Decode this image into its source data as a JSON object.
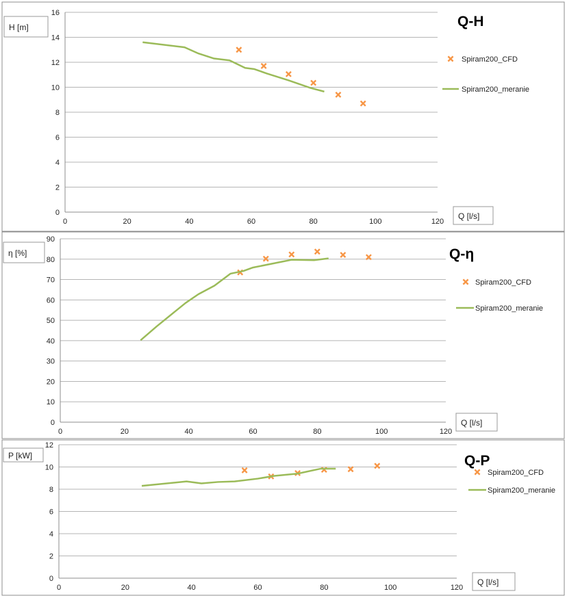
{
  "chart_data": [
    {
      "type": "scatter+line",
      "title": "Q-H",
      "xlabel": "Q [l/s]",
      "ylabel": "H [m]",
      "xlim": [
        0,
        120
      ],
      "ylim": [
        0,
        16
      ],
      "xticks": [
        0,
        20,
        40,
        60,
        80,
        100,
        120
      ],
      "yticks": [
        0,
        2,
        4,
        6,
        8,
        10,
        12,
        14,
        16
      ],
      "grid": "horizontal",
      "legend": "right",
      "series": [
        {
          "name": "Spiram200_CFD",
          "kind": "markers",
          "color": "#f79646",
          "x": [
            56,
            64,
            72,
            80,
            88,
            96
          ],
          "y": [
            13.0,
            11.7,
            11.05,
            10.35,
            9.4,
            8.7
          ]
        },
        {
          "name": "Spiram200_meranie",
          "kind": "line",
          "color": "#9bbb59",
          "x": [
            25,
            38.5,
            43,
            48,
            53,
            58,
            61,
            65,
            72,
            79,
            83.5
          ],
          "y": [
            13.6,
            13.2,
            12.7,
            12.3,
            12.15,
            11.55,
            11.45,
            11.1,
            10.55,
            9.95,
            9.65
          ]
        }
      ]
    },
    {
      "type": "scatter+line",
      "title": "Q-η",
      "xlabel": "Q [l/s]",
      "ylabel": "η [%]",
      "xlim": [
        0,
        120
      ],
      "ylim": [
        0,
        90
      ],
      "xticks": [
        0,
        20,
        40,
        60,
        80,
        100,
        120
      ],
      "yticks": [
        0,
        10,
        20,
        30,
        40,
        50,
        60,
        70,
        80,
        90
      ],
      "grid": "horizontal",
      "legend": "right",
      "series": [
        {
          "name": "Spiram200_CFD",
          "kind": "markers",
          "color": "#f79646",
          "x": [
            56,
            64,
            72,
            80,
            88,
            96
          ],
          "y": [
            73.5,
            80.2,
            82.3,
            83.7,
            82.1,
            81.0
          ]
        },
        {
          "name": "Spiram200_meranie",
          "kind": "line",
          "color": "#9bbb59",
          "x": [
            25,
            30,
            39,
            43,
            48,
            53,
            57,
            60,
            72,
            79,
            83.5
          ],
          "y": [
            40.2,
            47,
            58.5,
            62.8,
            67,
            72.9,
            74.2,
            75.9,
            79.7,
            79.5,
            80.4
          ]
        }
      ]
    },
    {
      "type": "scatter+line",
      "title": "Q-P",
      "xlabel": "Q [l/s]",
      "ylabel": "P [kW]",
      "xlim": [
        0,
        120
      ],
      "ylim": [
        0,
        12
      ],
      "xticks": [
        0,
        20,
        40,
        60,
        80,
        100,
        120
      ],
      "yticks": [
        0,
        2,
        4,
        6,
        8,
        10,
        12
      ],
      "grid": "horizontal",
      "legend": "right",
      "series": [
        {
          "name": "Spiram200_CFD",
          "kind": "markers",
          "color": "#f79646",
          "x": [
            56,
            64,
            72,
            80,
            88,
            96
          ],
          "y": [
            9.7,
            9.15,
            9.45,
            9.75,
            9.8,
            10.1
          ]
        },
        {
          "name": "Spiram200_meranie",
          "kind": "line",
          "color": "#9bbb59",
          "x": [
            25,
            38.5,
            43,
            48,
            53,
            60,
            65,
            72,
            79,
            83.5
          ],
          "y": [
            8.3,
            8.7,
            8.52,
            8.65,
            8.7,
            8.95,
            9.2,
            9.4,
            9.85,
            9.85
          ]
        }
      ]
    }
  ]
}
